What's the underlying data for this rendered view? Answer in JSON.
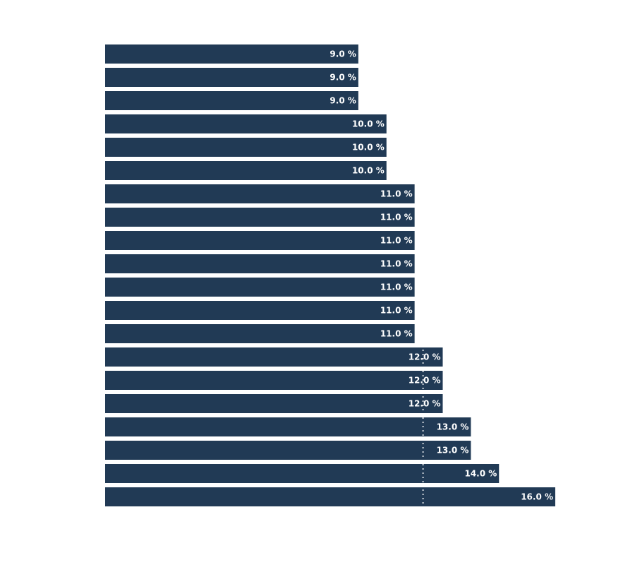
{
  "chart_data": {
    "type": "bar",
    "orientation": "horizontal",
    "values": [
      9.0,
      9.0,
      9.0,
      10.0,
      10.0,
      10.0,
      11.0,
      11.0,
      11.0,
      11.0,
      11.0,
      11.0,
      11.0,
      12.0,
      12.0,
      12.0,
      13.0,
      13.0,
      14.0,
      16.0
    ],
    "value_labels": [
      "9.0 %",
      "9.0 %",
      "9.0 %",
      "10.0 %",
      "10.0 %",
      "10.0 %",
      "11.0 %",
      "11.0 %",
      "11.0 %",
      "11.0 %",
      "11.0 %",
      "11.0 %",
      "11.0 %",
      "12.0 %",
      "12.0 %",
      "12.0 %",
      "13.0 %",
      "13.0 %",
      "14.0 %",
      "16.0 %"
    ],
    "reference_line": 11.3,
    "xlim": [
      0,
      16
    ],
    "bar_color": "#213a55",
    "label_color": "#ffffff",
    "reference_line_color": "#ffffff",
    "grid": false,
    "legend": "none"
  }
}
